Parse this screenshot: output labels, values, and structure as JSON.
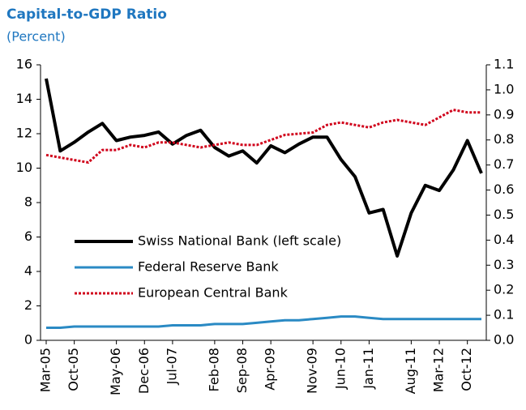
{
  "chart_data": {
    "type": "line",
    "title": "Capital-to-GDP Ratio",
    "subtitle": "(Percent)",
    "categories": [
      "Mar-05",
      null,
      "Oct-05",
      null,
      null,
      "May-06",
      null,
      "Dec-06",
      null,
      "Jul-07",
      null,
      null,
      "Feb-08",
      null,
      "Sep-08",
      null,
      "Apr-09",
      null,
      null,
      "Nov-09",
      null,
      "Jun-10",
      null,
      "Jan-11",
      null,
      null,
      "Aug-11",
      null,
      "Mar-12",
      null,
      "Oct-12",
      null
    ],
    "series": [
      {
        "name": "Swiss National Bank (left scale)",
        "color": "#000000",
        "axis": "y",
        "values": [
          15.2,
          11.0,
          11.5,
          12.1,
          12.6,
          11.6,
          11.8,
          11.9,
          12.1,
          11.4,
          11.9,
          12.2,
          11.2,
          10.7,
          11.0,
          10.3,
          11.3,
          10.9,
          11.4,
          11.8,
          11.8,
          10.5,
          9.5,
          7.4,
          7.6,
          4.9,
          7.4,
          9.0,
          8.7,
          9.9,
          11.6,
          9.7
        ]
      },
      {
        "name": "Federal Reserve Bank",
        "color": "#2a8ac4",
        "axis": "y2",
        "values": [
          0.05,
          0.05,
          0.055,
          0.055,
          0.055,
          0.055,
          0.055,
          0.055,
          0.055,
          0.06,
          0.06,
          0.06,
          0.065,
          0.065,
          0.065,
          0.07,
          0.075,
          0.08,
          0.08,
          0.085,
          0.09,
          0.095,
          0.095,
          0.09,
          0.085,
          0.085,
          0.085,
          0.085,
          0.085,
          0.085,
          0.085,
          0.085
        ]
      },
      {
        "name": "European Central Bank",
        "color": "#d0021b",
        "axis": "y2",
        "dashed": true,
        "values": [
          0.74,
          0.73,
          0.72,
          0.71,
          0.76,
          0.76,
          0.78,
          0.77,
          0.79,
          0.79,
          0.78,
          0.77,
          0.78,
          0.79,
          0.78,
          0.78,
          0.8,
          0.82,
          0.825,
          0.83,
          0.86,
          0.87,
          0.86,
          0.85,
          0.87,
          0.88,
          0.87,
          0.86,
          0.89,
          0.92,
          0.91,
          0.91
        ]
      }
    ],
    "ylim": [
      0,
      16
    ],
    "yticks": [
      0,
      2,
      4,
      6,
      8,
      10,
      12,
      14,
      16
    ],
    "y2lim": [
      0,
      1.1
    ],
    "y2ticks": [
      {
        "value": 0,
        "label": "0.0"
      },
      0.1,
      0.2,
      0.3,
      0.4,
      0.5,
      0.6,
      0.7,
      0.8,
      0.9,
      {
        "value": 1,
        "label": "1.0"
      },
      1.1
    ],
    "legend": "lower-left"
  }
}
